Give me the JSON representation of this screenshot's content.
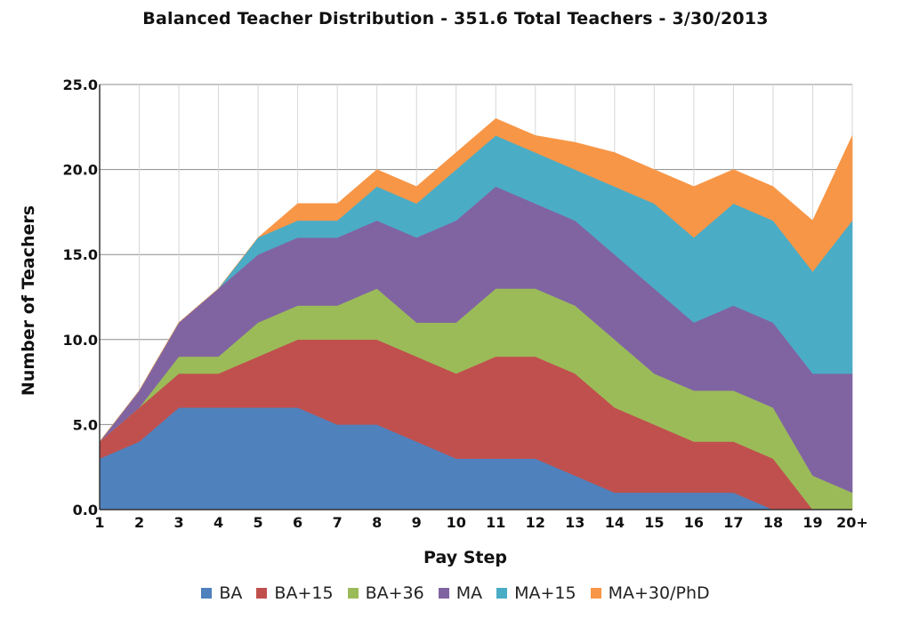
{
  "chart_data": {
    "type": "area",
    "stacked": true,
    "title": "Balanced Teacher Distribution - 351.6 Total Teachers - 3/30/2013",
    "xlabel": "Pay Step",
    "ylabel": "Number of Teachers",
    "ylim": [
      0,
      25
    ],
    "yticks": [
      "0.0",
      "5.0",
      "10.0",
      "15.0",
      "20.0",
      "25.0"
    ],
    "categories": [
      "1",
      "2",
      "3",
      "4",
      "5",
      "6",
      "7",
      "8",
      "9",
      "10",
      "11",
      "12",
      "13",
      "14",
      "15",
      "16",
      "17",
      "18",
      "19",
      "20+"
    ],
    "grid": true,
    "legend_position": "bottom",
    "series": [
      {
        "name": "BA",
        "color": "#4f81bd",
        "values": [
          3,
          4,
          6,
          6,
          6,
          6,
          5,
          5,
          4,
          3,
          3,
          3,
          2,
          1,
          1,
          1,
          1,
          0,
          0,
          0
        ]
      },
      {
        "name": "BA+15",
        "color": "#c0504d",
        "values": [
          1,
          2,
          2,
          2,
          3,
          4,
          5,
          5,
          5,
          5,
          6,
          6,
          6,
          5,
          4,
          3,
          3,
          3,
          0,
          0
        ]
      },
      {
        "name": "BA+36",
        "color": "#9bbb59",
        "values": [
          0,
          0,
          1,
          1,
          2,
          2,
          2,
          3,
          2,
          3,
          4,
          4,
          4,
          4,
          3,
          3,
          3,
          3,
          2,
          1
        ]
      },
      {
        "name": "MA",
        "color": "#8064a2",
        "values": [
          0,
          1,
          2,
          4,
          4,
          4,
          4,
          4,
          5,
          6,
          6,
          5,
          5,
          5,
          5,
          4,
          5,
          5,
          6,
          7
        ]
      },
      {
        "name": "MA+15",
        "color": "#4bacc6",
        "values": [
          0,
          0,
          0,
          0,
          1,
          1,
          1,
          2,
          2,
          3,
          3,
          3,
          3,
          4,
          5,
          5,
          6,
          6,
          6,
          9
        ]
      },
      {
        "name": "MA+30/PhD",
        "color": "#f79646",
        "values": [
          0,
          0,
          0,
          0,
          0,
          1,
          1,
          1,
          1,
          1,
          1,
          1,
          1.6,
          2,
          2,
          3,
          2,
          2,
          3,
          5
        ]
      }
    ]
  }
}
